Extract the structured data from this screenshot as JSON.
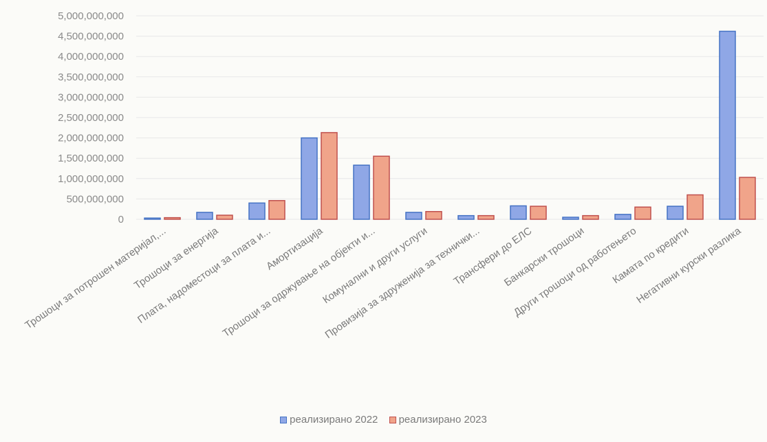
{
  "chart_data": {
    "type": "bar",
    "title": "",
    "xlabel": "",
    "ylabel": "",
    "ylim": [
      0,
      5000000000
    ],
    "yticks": [
      "0",
      "500,000,000",
      "1,000,000,000",
      "1,500,000,000",
      "2,000,000,000",
      "2,500,000,000",
      "3,000,000,000",
      "3,500,000,000",
      "4,000,000,000",
      "4,500,000,000",
      "5,000,000,000"
    ],
    "grid": true,
    "legend_position": "bottom",
    "categories": [
      "Трошоци за потрошен материјал,...",
      "Трошоци за енергија",
      "Плата, надоместоци за плата и...",
      "Амортизација",
      "Трошоци за одржување на објекти и...",
      "Комунални и други услуги",
      "Провизија за здружениjа за технички...",
      "Трансфери до ЕЛС",
      "Банкарски трошоци",
      "Други трошоци од работењето",
      "Камата по кредити",
      "Негативни курски разлика"
    ],
    "series": [
      {
        "name": "реализирано 2022",
        "color": "#4472c4",
        "fill": "#8fa7e6",
        "values": [
          30000000,
          170000000,
          400000000,
          2000000000,
          1330000000,
          170000000,
          90000000,
          330000000,
          50000000,
          120000000,
          320000000,
          4620000000
        ]
      },
      {
        "name": "реализирано 2023",
        "color": "#c0504d",
        "fill": "#f0a48a",
        "values": [
          40000000,
          100000000,
          460000000,
          2130000000,
          1550000000,
          190000000,
          90000000,
          320000000,
          90000000,
          300000000,
          600000000,
          1030000000
        ]
      }
    ]
  }
}
